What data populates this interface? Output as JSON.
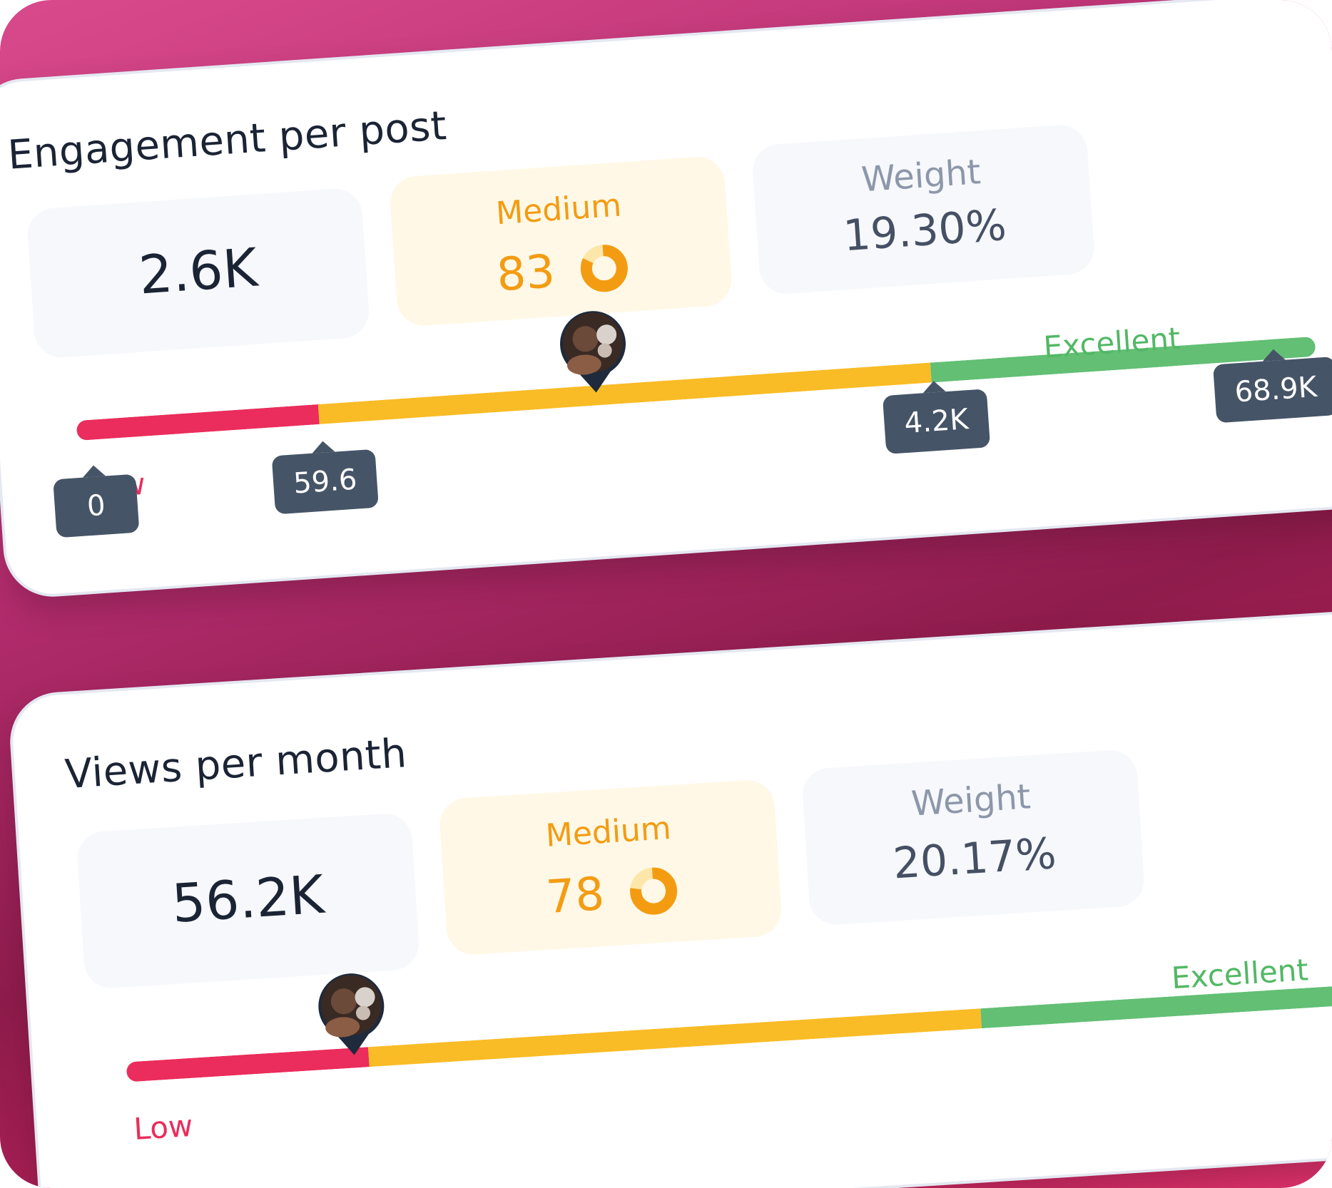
{
  "cards": [
    {
      "title": "Engagement per post",
      "value": "2.6K",
      "rating_label": "Medium",
      "score": "83",
      "score_fraction": 0.83,
      "weight_label": "Weight",
      "weight_value": "19.30%",
      "scale_low_label": "Low",
      "scale_excellent_label": "Excellent",
      "markers": [
        "0",
        "59.6",
        "4.2K",
        "68.9K"
      ]
    },
    {
      "title": "Views per month",
      "value": "56.2K",
      "rating_label": "Medium",
      "score": "78",
      "score_fraction": 0.78,
      "weight_label": "Weight",
      "weight_value": "20.17%",
      "scale_low_label": "Low",
      "scale_excellent_label": "Excellent"
    }
  ],
  "colors": {
    "low": "#ea2d5c",
    "medium": "#f9bc26",
    "excellent": "#62bf74",
    "accent": "#f39c12",
    "tag": "#465467"
  },
  "icons": {
    "avatar": "avatar-pin-icon",
    "score": "donut-score-icon"
  }
}
